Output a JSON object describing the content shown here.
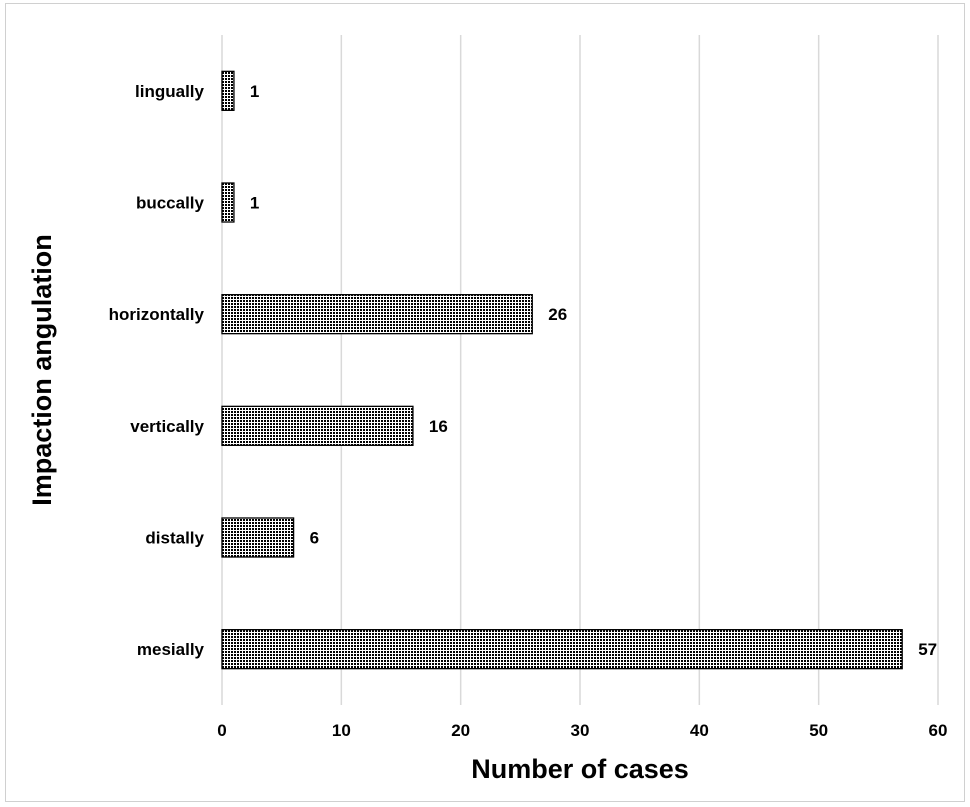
{
  "chart_data": {
    "type": "bar",
    "orientation": "horizontal",
    "title": "",
    "xlabel": "Number of cases",
    "ylabel": "Impaction angulation",
    "categories": [
      "mesially",
      "distally",
      "vertically",
      "horizontally",
      "buccally",
      "lingually"
    ],
    "values": [
      57,
      6,
      16,
      26,
      1,
      1
    ],
    "xlim": [
      0,
      60
    ],
    "xticks": [
      0,
      10,
      20,
      30,
      40,
      50,
      60
    ],
    "grid": true,
    "legend": "none",
    "bar_fill": "dotted pattern",
    "colors": {
      "bar_dots": "#000000",
      "bar_background": "#ffffff",
      "gridline": "#d9d9d9"
    }
  }
}
